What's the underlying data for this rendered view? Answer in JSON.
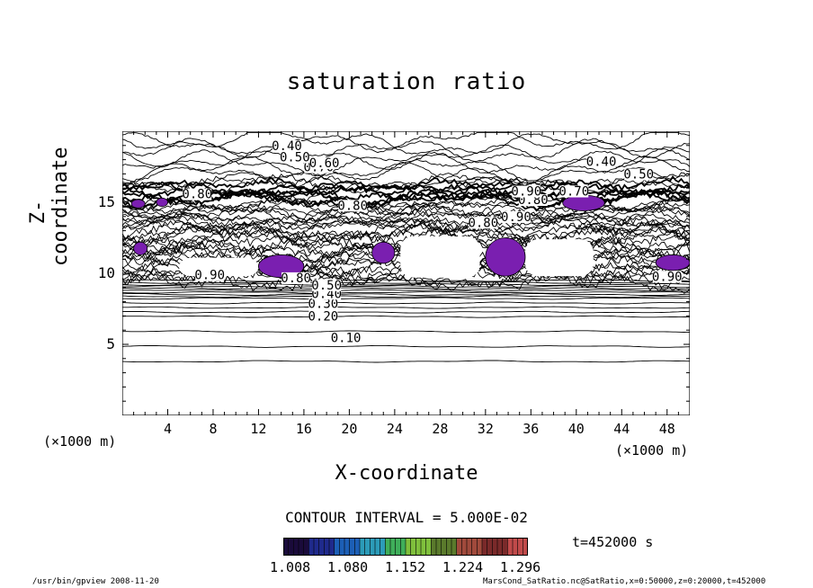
{
  "chart_data": {
    "type": "contour",
    "title": "saturation ratio",
    "xlabel": "X-coordinate",
    "ylabel": "Z-coordinate",
    "x_unit": "(×1000 m)",
    "y_unit": "(×1000 m)",
    "xlim": [
      0,
      50
    ],
    "ylim": [
      0,
      20
    ],
    "x_ticks": [
      4,
      8,
      12,
      16,
      20,
      24,
      28,
      32,
      36,
      40,
      44,
      48
    ],
    "y_ticks": [
      5,
      10,
      15
    ],
    "contour_interval_label": "CONTOUR INTERVAL = 5.000E-02",
    "contour_labels": [
      {
        "text": "0.10",
        "x": 19.7,
        "z": 5.3
      },
      {
        "text": "0.20",
        "x": 17.7,
        "z": 6.8
      },
      {
        "text": "0.30",
        "x": 17.7,
        "z": 7.7
      },
      {
        "text": "0.40",
        "x": 18.0,
        "z": 8.4
      },
      {
        "text": "0.50",
        "x": 18.0,
        "z": 9.0
      },
      {
        "text": "0.90",
        "x": 7.7,
        "z": 9.7
      },
      {
        "text": "0.80",
        "x": 15.3,
        "z": 9.5
      },
      {
        "text": "0.90",
        "x": 48.0,
        "z": 9.6
      },
      {
        "text": "0.80",
        "x": 31.8,
        "z": 13.4
      },
      {
        "text": "0.90",
        "x": 34.7,
        "z": 13.8
      },
      {
        "text": "0.80",
        "x": 20.3,
        "z": 14.6
      },
      {
        "text": "0.80",
        "x": 36.2,
        "z": 15.0
      },
      {
        "text": "0.90",
        "x": 35.6,
        "z": 15.6
      },
      {
        "text": "0.70",
        "x": 39.8,
        "z": 15.6
      },
      {
        "text": "0.80",
        "x": 6.6,
        "z": 15.4
      },
      {
        "text": "0.70",
        "x": 17.3,
        "z": 17.3
      },
      {
        "text": "0.60",
        "x": 17.8,
        "z": 17.6
      },
      {
        "text": "0.50",
        "x": 15.2,
        "z": 18.0
      },
      {
        "text": "0.40",
        "x": 14.5,
        "z": 18.8
      },
      {
        "text": "0.40",
        "x": 42.2,
        "z": 17.7
      },
      {
        "text": "0.50",
        "x": 45.5,
        "z": 16.8
      }
    ],
    "shaded_regions": [
      {
        "x": [
          12.0,
          16.0
        ],
        "z": [
          9.7,
          11.3
        ]
      },
      {
        "x": [
          32.0,
          35.5
        ],
        "z": [
          9.8,
          12.5
        ]
      },
      {
        "x": [
          38.8,
          42.5
        ],
        "z": [
          14.4,
          15.5
        ]
      },
      {
        "x": [
          47.0,
          50.0
        ],
        "z": [
          10.2,
          11.3
        ]
      },
      {
        "x": [
          22.0,
          24.0
        ],
        "z": [
          10.7,
          12.2
        ]
      },
      {
        "x": [
          0.8,
          2.0
        ],
        "z": [
          14.6,
          15.2
        ]
      },
      {
        "x": [
          3.0,
          4.0
        ],
        "z": [
          14.7,
          15.3
        ]
      },
      {
        "x": [
          1.0,
          2.2
        ],
        "z": [
          11.3,
          12.2
        ]
      }
    ],
    "colorbar": {
      "labels": [
        "1.008",
        "1.080",
        "1.152",
        "1.224",
        "1.296"
      ],
      "colors": [
        "#1a0b3b",
        "#1f2a8c",
        "#1c5fb6",
        "#2c9bb8",
        "#3fae5a",
        "#7fbf3c",
        "#5a7a2c",
        "#a04a3c",
        "#7a2a2a",
        "#c04a4a"
      ]
    },
    "shade_color": "#7a1fb0",
    "time_label": "t=452000 s"
  },
  "footer": {
    "left": "/usr/bin/gpview  2008-11-20",
    "right": "MarsCond_SatRatio.nc@SatRatio,x=0:50000,z=0:20000,t=452000"
  }
}
